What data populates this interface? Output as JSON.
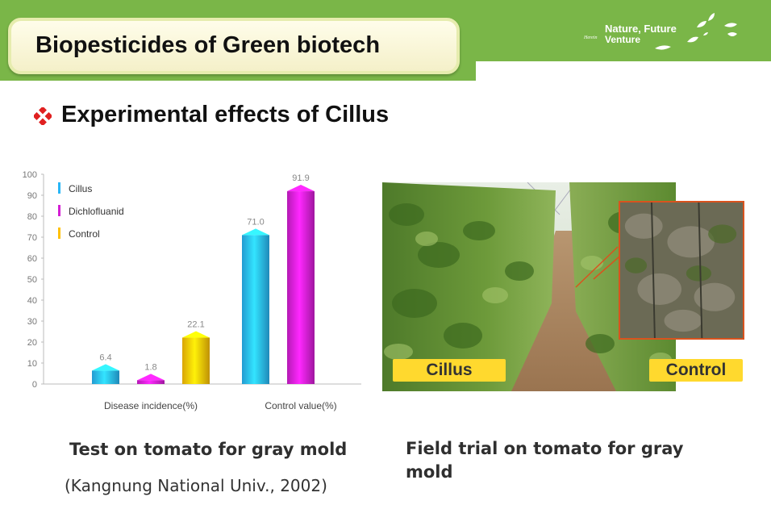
{
  "header": {
    "title": "Biopesticides of Green biotech",
    "brand_line1": "Nature, Future",
    "brand_small": "Herein",
    "brand_line2": "Venture"
  },
  "section": {
    "heading": "Experimental effects of Cillus",
    "bullet_icon": "diamond-bullet-icon",
    "bullet_color": "#e02020"
  },
  "chart_data": {
    "type": "bar",
    "categories": [
      "Disease incidence(%)",
      "Control value(%)"
    ],
    "series": [
      {
        "name": "Cillus",
        "values": [
          6.4,
          71.0
        ],
        "color": "#29b6f6"
      },
      {
        "name": "Dichlofluanid",
        "values": [
          1.8,
          91.9
        ],
        "color": "#d41fd4"
      },
      {
        "name": "Control",
        "values": [
          22.1,
          null
        ],
        "color": "#ffc107"
      }
    ],
    "value_labels": [
      [
        "6.4",
        "71.0"
      ],
      [
        "1.8",
        "91.9"
      ],
      [
        "22.1",
        ""
      ]
    ],
    "ylim": [
      0,
      100
    ],
    "yticks": [
      0,
      10,
      20,
      30,
      40,
      50,
      60,
      70,
      80,
      90,
      100
    ],
    "legend_position": "top-left",
    "grid": false
  },
  "photo": {
    "label_left": "Cillus",
    "label_right": "Control"
  },
  "captions": {
    "left": "Test on tomato for gray mold",
    "source": "(Kangnung National Univ., 2002)",
    "right": "Field trial on tomato for gray mold"
  },
  "colors": {
    "header_green": "#7ab648",
    "badge_yellow": "#ffd92e",
    "inset_border": "#d9531e"
  }
}
